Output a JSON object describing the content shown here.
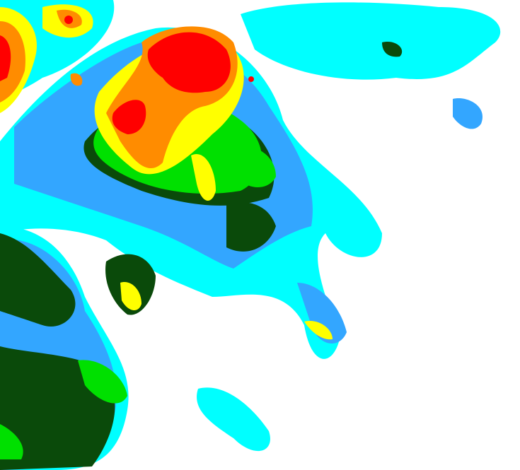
{
  "map": {
    "type": "weather-radar-reflectivity",
    "colors": {
      "background": "#ffffff",
      "light_precip": "#00ffff",
      "light_moderate": "#33a6ff",
      "moderate": "#0a4a0a",
      "moderate_heavy": "#00e000",
      "heavy": "#ffff00",
      "very_heavy": "#ff8c00",
      "intense": "#ff0000"
    }
  }
}
